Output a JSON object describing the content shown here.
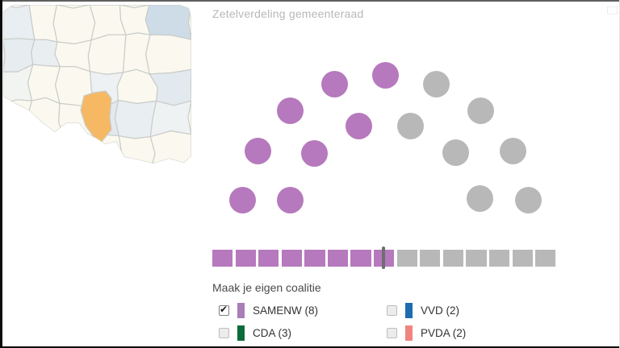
{
  "coalition": {
    "heading": "Maak je eigen coalitie"
  },
  "chart_data": {
    "type": "parliament",
    "title": "Zetelverdeling gemeenteraad",
    "total_seats": 15,
    "selected_party": "SAMENW",
    "selected_seats": 8,
    "seats_filled_color": "#b679bd",
    "seats_empty_color": "#b8b8b8",
    "parties": [
      {
        "name": "SAMENW",
        "seats": 8,
        "label": "SAMENW (8)",
        "color": "#a87db8",
        "checked": true
      },
      {
        "name": "VVD",
        "seats": 2,
        "label": "VVD (2)",
        "color": "#1c6cb0",
        "checked": false
      },
      {
        "name": "CDA",
        "seats": 3,
        "label": "CDA (3)",
        "color": "#0c6b3a",
        "checked": false
      },
      {
        "name": "PVDA",
        "seats": 2,
        "label": "PVDA (2)",
        "color": "#f08480",
        "checked": false
      }
    ],
    "bar": {
      "squares": 15,
      "filled": 8,
      "majority_marker_position": 7.5,
      "marker_color": "#6e6e6e"
    },
    "layout": {
      "center": [
        477.5,
        272
      ],
      "seat_radius": 16.5,
      "arcs": [
        {
          "r": 179,
          "count": 9,
          "start_deg": 172.3,
          "end_deg": 7.7
        },
        {
          "r": 120,
          "count": 6,
          "start_deg": 168.5,
          "end_deg": 12.5
        }
      ],
      "legend_position": "bottom"
    }
  },
  "map": {
    "highlight_color": "#f6b863",
    "base_color": "#fbf9ef",
    "border_color": "#c9ccc9",
    "tinted_cells": [
      {
        "r": 0,
        "c": 0,
        "color": "#e8eef1"
      },
      {
        "r": 0,
        "c": 5,
        "color": "#cddce6"
      },
      {
        "r": 1,
        "c": 0,
        "color": "#e6ecf0"
      },
      {
        "r": 1,
        "c": 1,
        "color": "#e9eff1"
      },
      {
        "r": 2,
        "c": 0,
        "color": "#f2f4f1"
      },
      {
        "r": 2,
        "c": 3,
        "color": "#edf1f3"
      },
      {
        "r": 2,
        "c": 5,
        "color": "#e2eaef"
      },
      {
        "r": 3,
        "c": 3,
        "color": "#e2eaef"
      },
      {
        "r": 3,
        "c": 4,
        "color": "#e8eef1"
      },
      {
        "r": 3,
        "c": 5,
        "color": "#eef2f3"
      }
    ]
  }
}
